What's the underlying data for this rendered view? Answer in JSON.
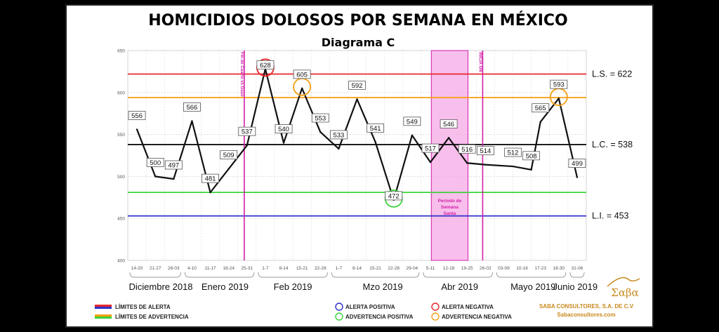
{
  "chart_data": {
    "type": "line",
    "title": "HOMICIDIOS DOLOSOS POR SEMANA EN MÉXICO",
    "subtitle": "Diagrama C",
    "xlabel": "",
    "ylabel": "",
    "ylim": [
      400,
      650
    ],
    "yticks": [
      "400",
      "450",
      "500",
      "550",
      "600",
      "650"
    ],
    "grid": true,
    "categories": [
      "14-20",
      "21-27",
      "28-03",
      "4-10",
      "11-17",
      "18-24",
      "25-31",
      "1-7",
      "8-14",
      "15-21",
      "22-28",
      "1-7",
      "8-14",
      "15-21",
      "22-28",
      "29-04",
      "5-11",
      "12-18",
      "19-25",
      "26-02",
      "03-09",
      "10-16",
      "17-23",
      "18-30",
      "31-06"
    ],
    "x_positions": [
      0,
      1,
      2,
      3,
      4,
      5,
      6,
      7,
      8,
      9,
      10,
      11,
      12,
      13,
      14,
      15,
      16,
      17,
      18,
      19,
      20,
      21,
      22,
      23,
      24
    ],
    "series": [
      {
        "name": "",
        "values": [
          556,
          500,
          497,
          566,
          481,
          509,
          537,
          628,
          540,
          605,
          553,
          533,
          592,
          541,
          472,
          549,
          517,
          546,
          516,
          514,
          512,
          508,
          565,
          593,
          499
        ],
        "x": [
          0,
          1,
          2,
          3,
          4,
          5,
          6,
          7,
          8,
          9,
          10,
          11,
          12,
          13,
          14,
          15,
          16,
          17,
          18,
          19,
          20.5,
          21.5,
          22,
          23,
          24
        ],
        "display_labels": [
          "556",
          "500",
          "497",
          "566",
          "481",
          "509",
          "537",
          "628",
          "540",
          "605",
          "553",
          "533",
          "592",
          "541",
          "472",
          "549",
          "517",
          "546",
          "516",
          "514",
          "512",
          "508",
          "565",
          "593",
          "499"
        ]
      }
    ],
    "reference_lines": [
      {
        "key": "ls",
        "value": 622,
        "label": "L.S. = 622",
        "color": "#e8262b"
      },
      {
        "key": "lc",
        "value": 538,
        "label": "L.C. = 538",
        "color": "#111111"
      },
      {
        "key": "li",
        "value": 453,
        "label": "L.I. = 453",
        "color": "#2d32c8"
      },
      {
        "key": "warn_up",
        "value": 594,
        "label": "",
        "color": "#f5a011"
      },
      {
        "key": "warn_low",
        "value": 481,
        "label": "",
        "color": "#3bd43b"
      }
    ],
    "months": [
      {
        "label": "Diciembre 2018",
        "x": 1.3
      },
      {
        "label": "Enero 2019",
        "x": 4.8
      },
      {
        "label": "Feb 2019",
        "x": 8.5
      },
      {
        "label": "Mzo 2019",
        "x": 13.4
      },
      {
        "label": "Abr 2019",
        "x": 17.6
      },
      {
        "label": "Mayo 2019",
        "x": 21.6
      },
      {
        "label": "Junio 2019",
        "x": 23.9
      }
    ],
    "vertical_markers": [
      {
        "x": 6.35,
        "label": "Fin de Cuarto vs Gaso",
        "color": "#d21fa8"
      },
      {
        "x": 19.35,
        "label": "INICIA GN",
        "color": "#d21fa8"
      }
    ],
    "shaded_band": {
      "x_start": 16.55,
      "x_end": 18.55,
      "label_lines": [
        "Periodo de",
        "Semana",
        "Santa"
      ],
      "color": "#f5a8e6"
    },
    "highlights": [
      {
        "index": 7,
        "color": "#e8262b"
      },
      {
        "index": 9,
        "color": "#f5a011"
      },
      {
        "index": 23,
        "color": "#f5a011"
      },
      {
        "index": 14,
        "color": "#3bd43b"
      }
    ],
    "legend": {
      "placement": "bottom",
      "entries": [
        {
          "label": "LÍMITES DE ALERTA",
          "colors": [
            "#e8262b",
            "#2d32c8"
          ],
          "kind": "double-line"
        },
        {
          "label": "LÍMITES DE ADVERTENCIA",
          "colors": [
            "#f5a011",
            "#3bd43b"
          ],
          "kind": "double-line"
        },
        {
          "label": "ALERTA POSITIVA",
          "colors": [
            "#2d32c8"
          ],
          "kind": "circle"
        },
        {
          "label": "ADVERTENCIA POSITIVA",
          "colors": [
            "#3bd43b"
          ],
          "kind": "circle"
        },
        {
          "label": "ALERTA NEGATIVA",
          "colors": [
            "#e8262b"
          ],
          "kind": "circle"
        },
        {
          "label": "ADVERTENCIA NEGATIVA",
          "colors": [
            "#f5a011"
          ],
          "kind": "circle"
        }
      ]
    },
    "branding": {
      "logo_text": "Σαβα",
      "company": "SABA CONSULTORES, S.A. DE C.V",
      "website": "Sabaconsultores.com",
      "color": "#c8891c"
    }
  }
}
